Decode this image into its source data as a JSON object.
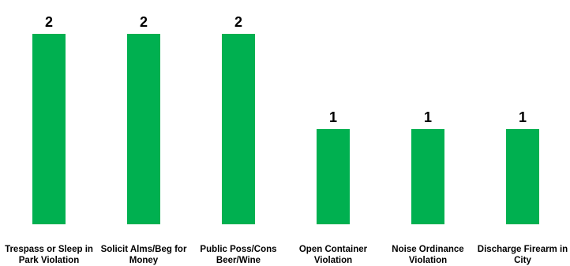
{
  "chart_data": {
    "type": "bar",
    "title": "",
    "xlabel": "",
    "ylabel": "",
    "ylim": [
      0,
      2
    ],
    "grid": false,
    "legend": "none",
    "bar_color": "#00b050",
    "categories": [
      [
        "Trespass or Sleep in",
        "Park Violation"
      ],
      [
        "Solicit Alms/Beg for",
        "Money"
      ],
      [
        "Public Poss/Cons",
        "Beer/Wine"
      ],
      [
        "Open Container",
        "Violation"
      ],
      [
        "Noise Ordinance",
        "Violation"
      ],
      [
        "Discharge Firearm in",
        "City"
      ]
    ],
    "values": [
      2,
      2,
      2,
      1,
      1,
      1
    ]
  }
}
